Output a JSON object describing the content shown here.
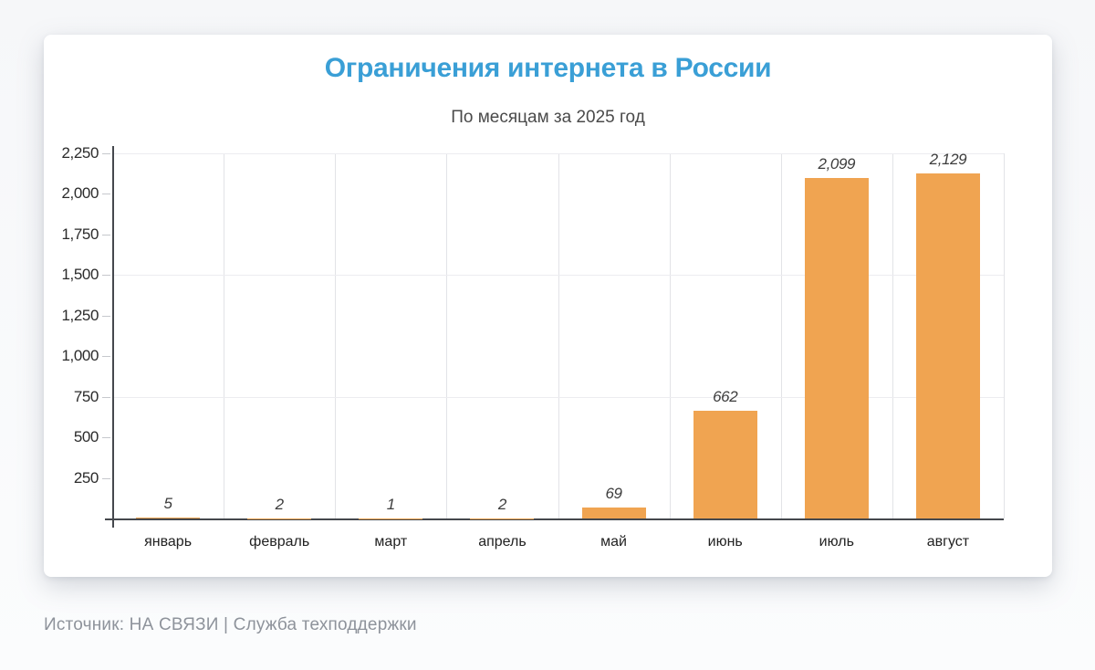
{
  "chart_data": {
    "type": "bar",
    "title": "Ограничения интернета в России",
    "subtitle": "По месяцам за 2025 год",
    "categories": [
      "январь",
      "февраль",
      "март",
      "апрель",
      "май",
      "июнь",
      "июль",
      "август"
    ],
    "values": [
      5,
      2,
      1,
      2,
      69,
      662,
      2099,
      2129
    ],
    "value_labels": [
      "5",
      "2",
      "1",
      "2",
      "69",
      "662",
      "2,099",
      "2,129"
    ],
    "xlabel": "",
    "ylabel": "",
    "ylim": [
      0,
      2250
    ],
    "ytick_interval": 250,
    "ytick_labels": [
      "250",
      "500",
      "750",
      "1,000",
      "1,250",
      "1,500",
      "1,750",
      "2,000",
      "2,250"
    ],
    "hgrid_values": [
      750,
      1500,
      2250
    ],
    "vgrid": "category-boundaries",
    "legend_position": "none",
    "colors": {
      "bar": "#f0a451",
      "title": "#3a9fd6",
      "subtitle": "#4a4a4a",
      "axis": "#45484d",
      "ytick_label": "#2b2b2b",
      "month_label": "#222222",
      "value_label": "#3d3d3d",
      "source_text": "#8e939b"
    }
  },
  "footer": {
    "source_text": "Источник: НА СВЯЗИ | Служба техподдержки"
  }
}
